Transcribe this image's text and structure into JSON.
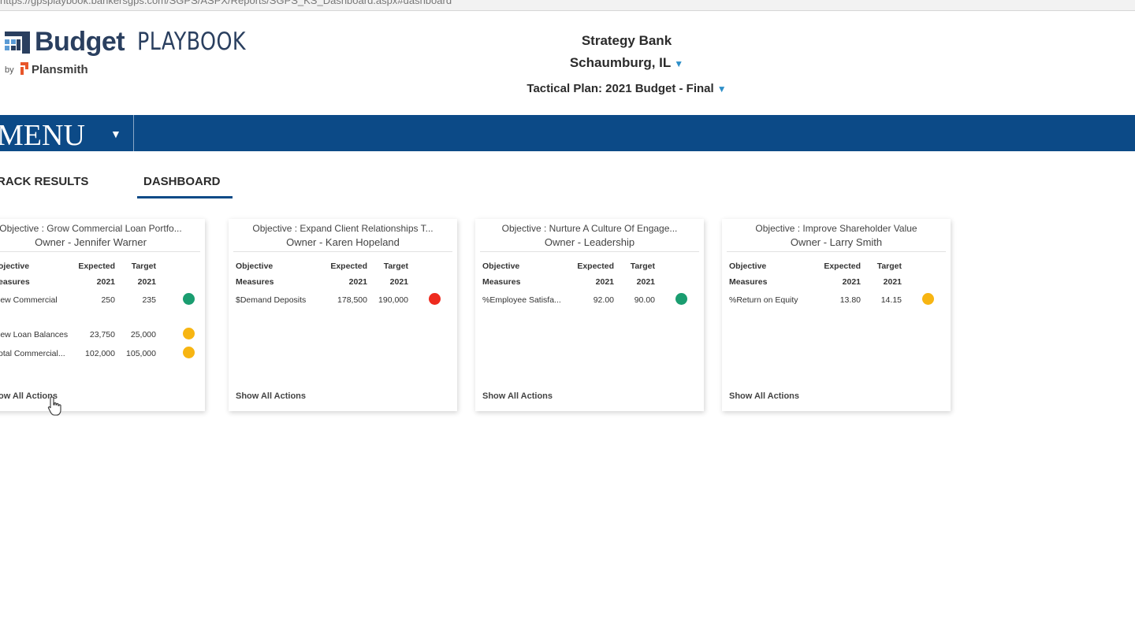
{
  "browser": {
    "url": "https://gpsplaybook.bankersgps.com/SGPS/ASPX/Reports/SGPS_KS_Dashboard.aspx#dashboard"
  },
  "logo": {
    "budget": "Budget",
    "playbook": "PLAYBOOK",
    "by": "by",
    "plansmith": "Plansmith"
  },
  "header": {
    "bank_name": "Strategy Bank",
    "location": "Schaumburg, IL",
    "plan": "Tactical Plan: 2021 Budget - Final"
  },
  "menu": {
    "label": "MENU"
  },
  "tabs": {
    "track_results": "RACK RESULTS",
    "dashboard": "DASHBOARD"
  },
  "columns": {
    "objective_line1": "Objective",
    "objective_line2": "Measures",
    "expected_line1": "Expected",
    "expected_line2": "2021",
    "target_line1": "Target",
    "target_line2": "2021"
  },
  "status_colors": {
    "green": "#1a9d70",
    "yellow": "#f7b512",
    "red": "#ee2a1e"
  },
  "cards": [
    {
      "title": "Objective : Grow Commercial Loan Portfo...",
      "owner": "Owner - Jennifer Warner",
      "col_objective_line1": "ojective",
      "col_objective_line2": "easures",
      "rows": [
        {
          "measure": "lew Commercial",
          "expected": "250",
          "target": "235",
          "status": "green"
        },
        {
          "measure": "lew Loan Balances",
          "expected": "23,750",
          "target": "25,000",
          "status": "yellow"
        },
        {
          "measure": "otal Commercial...",
          "expected": "102,000",
          "target": "105,000",
          "status": "yellow"
        }
      ],
      "show_all": "ow All Actions"
    },
    {
      "title": "Objective : Expand Client Relationships T...",
      "owner": "Owner - Karen Hopeland",
      "col_objective_line1": "Objective",
      "col_objective_line2": "Measures",
      "rows": [
        {
          "measure": "$Demand Deposits",
          "expected": "178,500",
          "target": "190,000",
          "status": "red"
        }
      ],
      "show_all": "Show All Actions"
    },
    {
      "title": "Objective : Nurture A Culture Of Engage...",
      "owner": "Owner - Leadership",
      "col_objective_line1": "Objective",
      "col_objective_line2": "Measures",
      "rows": [
        {
          "measure": "%Employee Satisfa...",
          "expected": "92.00",
          "target": "90.00",
          "status": "green"
        }
      ],
      "show_all": "Show All Actions"
    },
    {
      "title": "Objective : Improve Shareholder Value",
      "owner": "Owner - Larry Smith",
      "col_objective_line1": "Objective",
      "col_objective_line2": "Measures",
      "rows": [
        {
          "measure": "%Return on Equity",
          "expected": "13.80",
          "target": "14.15",
          "status": "yellow"
        }
      ],
      "show_all": "Show All Actions"
    }
  ]
}
